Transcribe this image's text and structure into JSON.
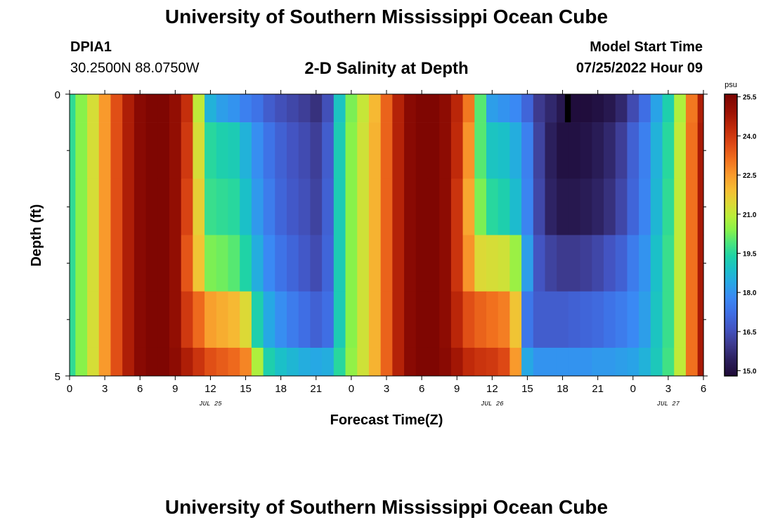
{
  "header": {
    "title": "University of Southern Mississippi Ocean Cube",
    "station": "DPIA1",
    "coords": "30.2500N  88.0750W",
    "subtitle": "2-D Salinity at Depth",
    "model_start_label": "Model Start Time",
    "model_start_value": "07/25/2022 Hour 09",
    "footer_title": "University of Southern Mississippi Ocean Cube"
  },
  "chart_data": {
    "type": "heatmap",
    "title": "2-D Salinity at Depth",
    "xlabel": "Forecast Time(Z)",
    "ylabel": "Depth (ft)",
    "x_range_hours": [
      0,
      54
    ],
    "y_range_ft": [
      0,
      5
    ],
    "x_ticks": [
      {
        "h": 0,
        "label": "0"
      },
      {
        "h": 3,
        "label": "3"
      },
      {
        "h": 6,
        "label": "6"
      },
      {
        "h": 9,
        "label": "9"
      },
      {
        "h": 12,
        "label": "12"
      },
      {
        "h": 15,
        "label": "15"
      },
      {
        "h": 18,
        "label": "18"
      },
      {
        "h": 21,
        "label": "21"
      },
      {
        "h": 24,
        "label": "0"
      },
      {
        "h": 27,
        "label": "3"
      },
      {
        "h": 30,
        "label": "6"
      },
      {
        "h": 33,
        "label": "9"
      },
      {
        "h": 36,
        "label": "12"
      },
      {
        "h": 39,
        "label": "15"
      },
      {
        "h": 42,
        "label": "18"
      },
      {
        "h": 45,
        "label": "21"
      },
      {
        "h": 48,
        "label": "0"
      },
      {
        "h": 51,
        "label": "3"
      },
      {
        "h": 54,
        "label": "6"
      }
    ],
    "date_labels": [
      {
        "h": 12,
        "label": "JUL 25"
      },
      {
        "h": 36,
        "label": "JUL 26"
      },
      {
        "h": 51,
        "label": "JUL 27"
      }
    ],
    "y_ticks": [
      {
        "v": 0,
        "label": "0"
      },
      {
        "v": 5,
        "label": "5"
      }
    ],
    "y_minor_ticks": [
      1,
      2,
      3,
      4
    ],
    "layers_ft": [
      [
        0,
        0.5
      ],
      [
        0.5,
        1.5
      ],
      [
        1.5,
        2.5
      ],
      [
        2.5,
        3.5
      ],
      [
        3.5,
        4.5
      ],
      [
        4.5,
        5
      ]
    ],
    "time_hours": [
      0,
      1,
      2,
      3,
      4,
      5,
      6,
      7,
      8,
      9,
      10,
      11,
      12,
      13,
      14,
      15,
      16,
      17,
      18,
      19,
      20,
      21,
      22,
      23,
      24,
      25,
      26,
      27,
      28,
      29,
      30,
      31,
      32,
      33,
      34,
      35,
      36,
      37,
      38,
      39,
      40,
      41,
      42,
      43,
      44,
      45,
      46,
      47,
      48,
      49,
      50,
      51,
      52,
      53,
      54
    ],
    "salinity_psu": [
      [
        19.6,
        20.4,
        21.3,
        22.5,
        23.6,
        24.6,
        25.3,
        25.5,
        25.5,
        25.1,
        24.2,
        21.0,
        18.6,
        18.2,
        18.0,
        17.6,
        17.3,
        16.8,
        16.5,
        16.3,
        16.1,
        15.8,
        16.5,
        19.0,
        20.3,
        21.1,
        22.0,
        23.3,
        24.5,
        25.3,
        25.5,
        25.5,
        25.2,
        24.4,
        23.0,
        20.0,
        18.2,
        18.0,
        17.8,
        17.0,
        16.0,
        15.6,
        15.2,
        14.9,
        14.9,
        15.0,
        15.2,
        15.6,
        16.4,
        17.2,
        18.3,
        19.3,
        20.8,
        23.0,
        24.6
      ],
      [
        19.6,
        20.4,
        21.3,
        22.5,
        23.6,
        24.6,
        25.3,
        25.5,
        25.5,
        25.1,
        24.0,
        21.3,
        19.5,
        19.3,
        19.2,
        18.6,
        17.9,
        17.3,
        16.9,
        16.6,
        16.4,
        16.1,
        16.8,
        19.2,
        20.4,
        21.2,
        22.1,
        23.3,
        24.5,
        25.3,
        25.5,
        25.5,
        25.2,
        24.3,
        22.6,
        20.0,
        19.0,
        18.9,
        18.5,
        17.6,
        16.2,
        15.4,
        15.0,
        15.0,
        15.1,
        15.3,
        15.6,
        16.1,
        16.9,
        17.6,
        18.6,
        19.5,
        21.0,
        23.1,
        24.7
      ],
      [
        19.6,
        20.4,
        21.3,
        22.5,
        23.6,
        24.6,
        25.3,
        25.5,
        25.5,
        25.1,
        23.8,
        21.6,
        19.7,
        19.6,
        19.5,
        18.9,
        18.1,
        17.5,
        17.0,
        16.7,
        16.5,
        16.2,
        16.9,
        19.2,
        20.4,
        21.2,
        22.1,
        23.3,
        24.5,
        25.3,
        25.5,
        25.5,
        25.2,
        24.1,
        22.3,
        20.3,
        19.5,
        19.3,
        18.8,
        17.7,
        16.3,
        15.5,
        15.2,
        15.2,
        15.3,
        15.5,
        15.8,
        16.3,
        17.0,
        17.7,
        18.7,
        19.6,
        21.0,
        23.1,
        24.7
      ],
      [
        19.6,
        20.4,
        21.3,
        22.5,
        23.6,
        24.6,
        25.3,
        25.5,
        25.5,
        25.1,
        23.5,
        21.8,
        20.3,
        20.2,
        20.0,
        19.4,
        18.5,
        17.8,
        17.3,
        17.0,
        16.7,
        16.4,
        17.0,
        19.2,
        20.4,
        21.2,
        22.1,
        23.3,
        24.5,
        25.3,
        25.5,
        25.5,
        25.2,
        24.1,
        22.6,
        21.4,
        21.3,
        21.2,
        20.6,
        18.2,
        16.6,
        16.2,
        16.0,
        16.0,
        16.1,
        16.3,
        16.6,
        16.9,
        17.5,
        18.0,
        18.9,
        19.7,
        21.0,
        23.1,
        24.7
      ],
      [
        19.6,
        20.4,
        21.3,
        22.5,
        23.6,
        24.6,
        25.3,
        25.5,
        25.5,
        25.1,
        24.0,
        23.2,
        22.4,
        22.2,
        22.0,
        21.4,
        19.3,
        18.4,
        17.9,
        17.5,
        17.2,
        16.9,
        17.2,
        19.2,
        20.4,
        21.2,
        22.1,
        23.3,
        24.5,
        25.3,
        25.5,
        25.5,
        25.2,
        24.4,
        23.6,
        23.3,
        23.1,
        22.9,
        21.8,
        17.4,
        16.8,
        16.8,
        16.8,
        16.9,
        17.0,
        17.1,
        17.3,
        17.5,
        17.8,
        18.2,
        19.0,
        19.7,
        21.0,
        23.1,
        24.7
      ],
      [
        19.6,
        20.4,
        21.3,
        22.5,
        23.6,
        24.6,
        25.3,
        25.5,
        25.5,
        25.2,
        24.6,
        24.1,
        23.6,
        23.4,
        23.2,
        22.8,
        20.8,
        19.3,
        18.9,
        18.7,
        18.5,
        18.4,
        18.5,
        19.5,
        20.5,
        21.2,
        22.1,
        23.3,
        24.5,
        25.3,
        25.5,
        25.5,
        25.3,
        24.8,
        24.3,
        24.1,
        24.0,
        23.7,
        22.5,
        18.4,
        18.0,
        18.0,
        18.0,
        18.0,
        18.0,
        18.1,
        18.1,
        18.2,
        18.3,
        18.6,
        19.1,
        19.8,
        21.0,
        23.1,
        24.7
      ]
    ],
    "masked_cells": [
      {
        "layer": 0,
        "from_h": 42.2,
        "to_h": 42.7
      }
    ],
    "colorbar": {
      "unit": "psu",
      "min": 14.8,
      "max": 25.6,
      "tick_values": [
        15.0,
        16.5,
        18.0,
        19.5,
        21.0,
        22.5,
        24.0,
        25.5
      ],
      "tick_labels": [
        "15.0",
        "16.5",
        "18.0",
        "19.5",
        "21.0",
        "22.5",
        "24.0",
        "25.5"
      ],
      "stops": [
        {
          "v": 14.8,
          "c": "#1e0a36"
        },
        {
          "v": 15.4,
          "c": "#2b1f5c"
        },
        {
          "v": 16.0,
          "c": "#3d3a8e"
        },
        {
          "v": 16.6,
          "c": "#4354c2"
        },
        {
          "v": 17.2,
          "c": "#3f6ee4"
        },
        {
          "v": 17.8,
          "c": "#3a89f4"
        },
        {
          "v": 18.4,
          "c": "#26a8e4"
        },
        {
          "v": 18.9,
          "c": "#1bc0c8"
        },
        {
          "v": 19.4,
          "c": "#1fd3a6"
        },
        {
          "v": 19.9,
          "c": "#4ae57c"
        },
        {
          "v": 20.4,
          "c": "#88f24a"
        },
        {
          "v": 20.9,
          "c": "#b8ee3a"
        },
        {
          "v": 21.4,
          "c": "#dcd936"
        },
        {
          "v": 21.9,
          "c": "#f5bf34"
        },
        {
          "v": 22.5,
          "c": "#f99a2c"
        },
        {
          "v": 23.1,
          "c": "#f1701e"
        },
        {
          "v": 23.7,
          "c": "#dd4815"
        },
        {
          "v": 24.3,
          "c": "#c02a0a"
        },
        {
          "v": 24.9,
          "c": "#9c1204"
        },
        {
          "v": 25.6,
          "c": "#7a0402"
        }
      ]
    }
  }
}
